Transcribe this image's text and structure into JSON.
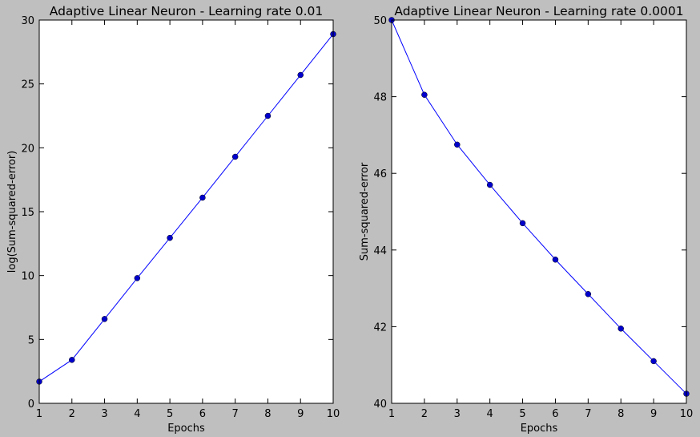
{
  "chart_data": [
    {
      "type": "line",
      "title": "Adaptive Linear Neuron - Learning rate 0.01",
      "xlabel": "Epochs",
      "ylabel": "log(Sum-squared-error)",
      "xlim": [
        1,
        10
      ],
      "ylim": [
        0,
        30
      ],
      "xticks": [
        1,
        2,
        3,
        4,
        5,
        6,
        7,
        8,
        9,
        10
      ],
      "yticks": [
        0,
        5,
        10,
        15,
        20,
        25,
        30
      ],
      "grid": false,
      "color": "#0000ff",
      "marker_color": "#0000cc",
      "series": [
        {
          "x": [
            1,
            2,
            3,
            4,
            5,
            6,
            7,
            8,
            9,
            10
          ],
          "y": [
            1.7,
            3.4,
            6.6,
            9.8,
            12.95,
            16.1,
            19.3,
            22.5,
            25.7,
            28.9
          ]
        }
      ]
    },
    {
      "type": "line",
      "title": "Adaptive Linear Neuron - Learning rate 0.0001",
      "xlabel": "Epochs",
      "ylabel": "Sum-squared-error",
      "xlim": [
        1,
        10
      ],
      "ylim": [
        40,
        50
      ],
      "xticks": [
        1,
        2,
        3,
        4,
        5,
        6,
        7,
        8,
        9,
        10
      ],
      "yticks": [
        40,
        42,
        44,
        46,
        48,
        50
      ],
      "grid": false,
      "color": "#0000ff",
      "marker_color": "#0000cc",
      "series": [
        {
          "x": [
            1,
            2,
            3,
            4,
            5,
            6,
            7,
            8,
            9,
            10
          ],
          "y": [
            50.0,
            48.05,
            46.75,
            45.7,
            44.7,
            43.75,
            42.85,
            41.95,
            41.1,
            40.25
          ]
        }
      ]
    }
  ]
}
